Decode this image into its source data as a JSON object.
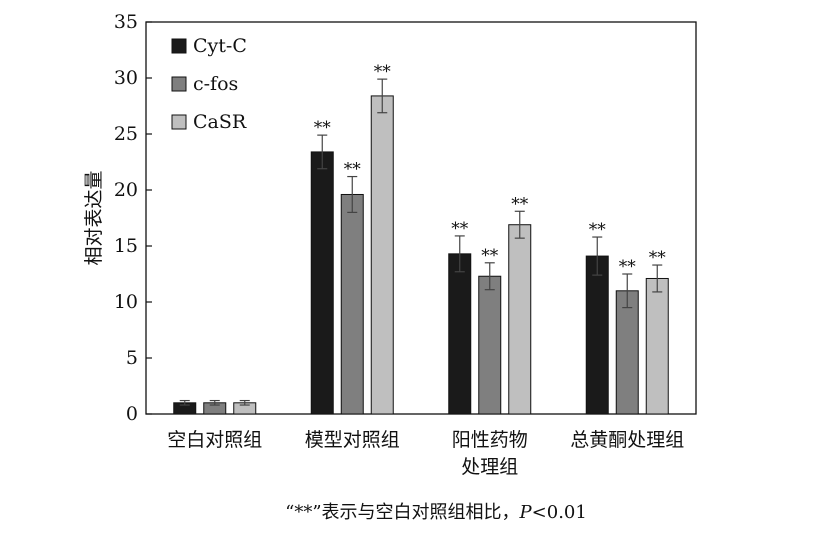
{
  "chart_data": {
    "type": "bar",
    "ylabel": "相对表达量",
    "ylim": [
      0,
      35
    ],
    "yticks": [
      0,
      5,
      10,
      15,
      20,
      25,
      30,
      35
    ],
    "grid": false,
    "legend_position": "top-left",
    "categories": [
      [
        "空白对照组"
      ],
      [
        "模型对照组"
      ],
      [
        "阳性药物",
        "处理组"
      ],
      [
        "总黄酮处理组"
      ]
    ],
    "series": [
      {
        "name": "Cyt-C",
        "color": "#1a1a1a",
        "values": [
          1.0,
          23.4,
          14.3,
          14.1
        ],
        "errors": [
          0.2,
          1.5,
          1.6,
          1.7
        ],
        "sig": [
          "",
          "**",
          "**",
          "**"
        ]
      },
      {
        "name": "c-fos",
        "color": "#7f7f7f",
        "values": [
          1.0,
          19.6,
          12.3,
          11.0
        ],
        "errors": [
          0.2,
          1.6,
          1.2,
          1.5
        ],
        "sig": [
          "",
          "**",
          "**",
          "**"
        ]
      },
      {
        "name": "CaSR",
        "color": "#bfbfbf",
        "values": [
          1.0,
          28.4,
          16.9,
          12.1
        ],
        "errors": [
          0.2,
          1.5,
          1.2,
          1.2
        ],
        "sig": [
          "",
          "**",
          "**",
          "**"
        ]
      }
    ],
    "footnote": {
      "before": "“**”表示与空白对照组相比，",
      "italic": "P",
      "after": "<0.01"
    }
  }
}
